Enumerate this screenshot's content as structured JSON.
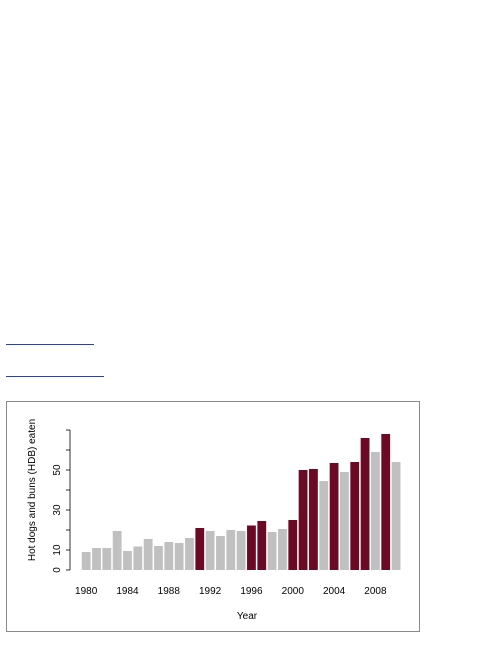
{
  "chart_data": {
    "type": "bar",
    "title": "",
    "xlabel": "Year",
    "ylabel": "Hot dogs and buns (HDB) eaten",
    "xlim": [
      1980,
      2010
    ],
    "ylim": [
      0,
      70
    ],
    "x_ticks": [
      1980,
      1984,
      1988,
      1992,
      1996,
      2000,
      2004,
      2008
    ],
    "y_ticks": [
      0,
      10,
      30,
      50
    ],
    "grid": false,
    "legend": false,
    "years": [
      1980,
      1981,
      1982,
      1983,
      1984,
      1985,
      1986,
      1987,
      1988,
      1989,
      1990,
      1991,
      1992,
      1993,
      1994,
      1995,
      1996,
      1997,
      1998,
      1999,
      2000,
      2001,
      2002,
      2003,
      2004,
      2005,
      2006,
      2007,
      2008,
      2009,
      2010
    ],
    "values": [
      9,
      11,
      11,
      19.5,
      9.5,
      11.75,
      15.5,
      12,
      14,
      13.5,
      16,
      21,
      19.5,
      17,
      20,
      19.5,
      22.25,
      24.5,
      19,
      20.5,
      25,
      50,
      50.5,
      44.5,
      53.5,
      49,
      54,
      66,
      59,
      68,
      54
    ],
    "new_record": [
      false,
      false,
      false,
      false,
      false,
      false,
      false,
      false,
      false,
      false,
      false,
      true,
      false,
      false,
      false,
      false,
      true,
      true,
      false,
      false,
      true,
      true,
      true,
      false,
      true,
      false,
      true,
      true,
      false,
      true,
      false
    ],
    "colors": {
      "record": "#6b0a24",
      "normal": "#c0c0c0"
    }
  }
}
